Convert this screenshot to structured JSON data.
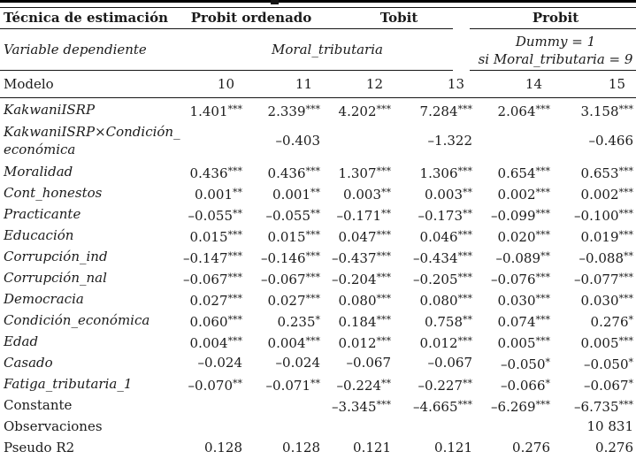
{
  "table": {
    "header": {
      "technique_label": "Técnica de estimación",
      "groups": [
        {
          "label": "Probit ordenado"
        },
        {
          "label": "Tobit"
        },
        {
          "label": "Probit"
        }
      ],
      "dep_var_label": "Variable dependiente",
      "dep_var_center": "Moral_tributaria",
      "dep_var_right_line1": "Dummy = 1",
      "dep_var_right_line2": "si Moral_tributaria = 9",
      "model_label": "Modelo",
      "model_numbers": [
        "10",
        "11",
        "12",
        "13",
        "14",
        "15"
      ]
    },
    "rows": [
      {
        "label": "KakwaniISRP",
        "italic": true,
        "values": [
          "1.401***",
          "2.339***",
          "4.202***",
          "7.284***",
          "2.064***",
          "3.158***"
        ]
      },
      {
        "label": "KakwaniISRP×Condición_\neconómica",
        "italic": true,
        "values": [
          "",
          "–0.403",
          "",
          "–1.322",
          "",
          "–0.466"
        ]
      },
      {
        "label": "Moralidad",
        "italic": true,
        "values": [
          "0.436***",
          "0.436***",
          "1.307***",
          "1.306***",
          "0.654***",
          "0.653***"
        ]
      },
      {
        "label": "Cont_honestos",
        "italic": true,
        "values": [
          "0.001**",
          "0.001**",
          "0.003**",
          "0.003**",
          "0.002***",
          "0.002***"
        ]
      },
      {
        "label": "Practicante",
        "italic": true,
        "values": [
          "–0.055**",
          "–0.055**",
          "–0.171**",
          "–0.173**",
          "–0.099***",
          "–0.100***"
        ]
      },
      {
        "label": "Educación",
        "italic": true,
        "values": [
          "0.015***",
          "0.015***",
          "0.047***",
          "0.046***",
          "0.020***",
          "0.019***"
        ]
      },
      {
        "label": "Corrupción_ind",
        "italic": true,
        "values": [
          "–0.147***",
          "–0.146***",
          "–0.437***",
          "–0.434***",
          "–0.089**",
          "–0.088**"
        ]
      },
      {
        "label": "Corrupción_nal",
        "italic": true,
        "values": [
          "–0.067***",
          "–0.067***",
          "–0.204***",
          "–0.205***",
          "–0.076***",
          "–0.077***"
        ]
      },
      {
        "label": "Democracia",
        "italic": true,
        "values": [
          "0.027***",
          "0.027***",
          "0.080***",
          "0.080***",
          "0.030***",
          "0.030***"
        ]
      },
      {
        "label": "Condición_económica",
        "italic": true,
        "values": [
          "0.060***",
          "0.235*",
          "0.184***",
          "0.758**",
          "0.074***",
          "0.276*"
        ]
      },
      {
        "label": "Edad",
        "italic": true,
        "values": [
          "0.004***",
          "0.004***",
          "0.012***",
          "0.012***",
          "0.005***",
          "0.005***"
        ]
      },
      {
        "label": "Casado",
        "italic": true,
        "values": [
          "–0.024",
          "–0.024",
          "–0.067",
          "–0.067",
          "–0.050*",
          "–0.050*"
        ]
      },
      {
        "label": "Fatiga_tributaria_1",
        "italic": true,
        "values": [
          "–0.070**",
          "–0.071**",
          "–0.224**",
          "–0.227**",
          "–0.066*",
          "–0.067*"
        ]
      },
      {
        "label": "Constante",
        "italic": false,
        "values": [
          "",
          "",
          "–3.345***",
          "–4.665***",
          "–6.269***",
          "–6.735***"
        ]
      },
      {
        "label": "Observaciones",
        "italic": false,
        "values": [
          "",
          "",
          "",
          "",
          "",
          "10 831"
        ]
      },
      {
        "label": "Pseudo R2",
        "italic": false,
        "values": [
          "0.128",
          "0.128",
          "0.121",
          "0.121",
          "0.276",
          "0.276"
        ]
      }
    ]
  }
}
